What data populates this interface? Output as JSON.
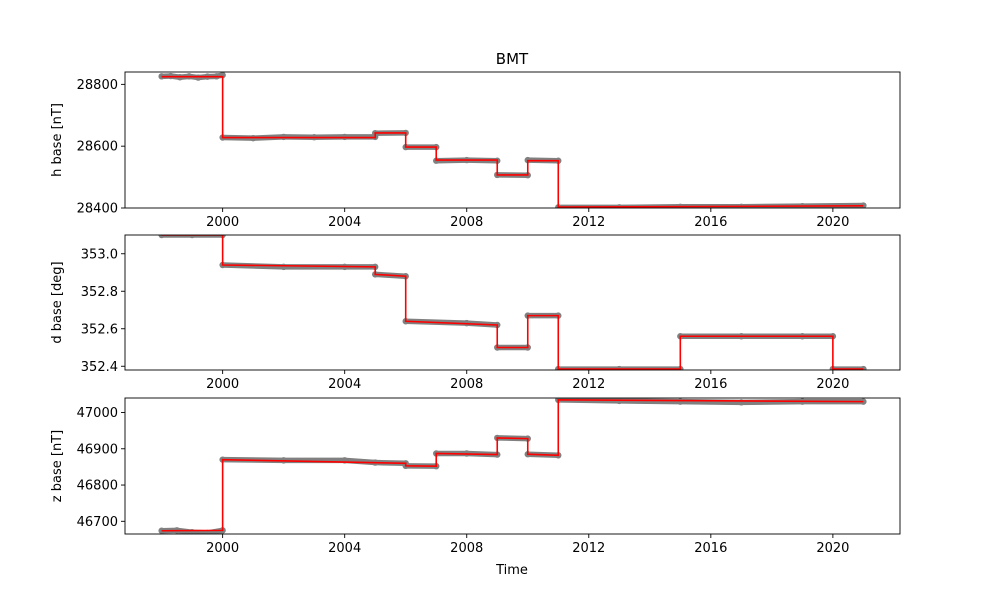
{
  "figure": {
    "title": "BMT",
    "xlabel": "Time",
    "colors": {
      "points": "#808080",
      "line": "#ff0000",
      "axes": "#000000"
    }
  },
  "chart_data": [
    {
      "type": "line",
      "ylabel": "h base [nT]",
      "xlim": [
        1996.8,
        2022.2
      ],
      "ylim": [
        28400,
        28840
      ],
      "xticks": [
        2000,
        2004,
        2008,
        2012,
        2016,
        2020
      ],
      "yticks": [
        28400,
        28600,
        28800
      ],
      "series": [
        {
          "style": "scatter",
          "color": "#808080",
          "points": [
            [
              1998.0,
              28826
            ],
            [
              1998.3,
              28827
            ],
            [
              1998.6,
              28823
            ],
            [
              1998.9,
              28826
            ],
            [
              1999.2,
              28822
            ],
            [
              1999.5,
              28825
            ],
            [
              1999.8,
              28826
            ],
            [
              2000.0,
              28830
            ],
            [
              2000.0,
              28628
            ],
            [
              2001.0,
              28626
            ],
            [
              2002.0,
              28630
            ],
            [
              2003.0,
              28629
            ],
            [
              2004.0,
              28630
            ],
            [
              2005.0,
              28630
            ],
            [
              2005.0,
              28642
            ],
            [
              2006.0,
              28643
            ],
            [
              2006.0,
              28597
            ],
            [
              2007.0,
              28597
            ],
            [
              2007.0,
              28553
            ],
            [
              2008.0,
              28555
            ],
            [
              2009.0,
              28553
            ],
            [
              2009.0,
              28507
            ],
            [
              2010.0,
              28506
            ],
            [
              2010.0,
              28555
            ],
            [
              2011.0,
              28553
            ],
            [
              2011.0,
              28402
            ],
            [
              2013.0,
              28402
            ],
            [
              2015.0,
              28404
            ],
            [
              2017.0,
              28404
            ],
            [
              2019.0,
              28406
            ],
            [
              2021.0,
              28408
            ]
          ]
        },
        {
          "style": "step-line",
          "color": "#ff0000",
          "x": [
            1998.0,
            2000.0,
            2000.0,
            2005.0,
            2005.0,
            2006.0,
            2006.0,
            2007.0,
            2007.0,
            2009.0,
            2009.0,
            2010.0,
            2010.0,
            2011.0,
            2011.0,
            2021.0
          ],
          "y": [
            28825,
            28825,
            28628,
            28628,
            28643,
            28643,
            28597,
            28597,
            28555,
            28555,
            28507,
            28507,
            28553,
            28553,
            28403,
            28407
          ]
        }
      ]
    },
    {
      "type": "line",
      "ylabel": "d base [deg]",
      "xlim": [
        1996.8,
        2022.2
      ],
      "ylim": [
        352.38,
        353.1
      ],
      "xticks": [
        2000,
        2004,
        2008,
        2012,
        2016,
        2020
      ],
      "yticks": [
        352.4,
        352.6,
        352.8,
        353.0
      ],
      "yticklabels": [
        "352.4",
        "352.6",
        "352.8",
        "353.0"
      ],
      "series": [
        {
          "style": "scatter",
          "color": "#808080",
          "points": [
            [
              1998.0,
              353.1
            ],
            [
              1999.0,
              353.1
            ],
            [
              2000.0,
              353.1
            ],
            [
              2000.0,
              352.94
            ],
            [
              2002.0,
              352.93
            ],
            [
              2004.0,
              352.93
            ],
            [
              2005.0,
              352.93
            ],
            [
              2005.0,
              352.89
            ],
            [
              2006.0,
              352.88
            ],
            [
              2006.0,
              352.64
            ],
            [
              2008.0,
              352.63
            ],
            [
              2009.0,
              352.62
            ],
            [
              2009.0,
              352.5
            ],
            [
              2010.0,
              352.5
            ],
            [
              2010.0,
              352.67
            ],
            [
              2011.0,
              352.67
            ],
            [
              2011.0,
              352.385
            ],
            [
              2013.0,
              352.385
            ],
            [
              2015.0,
              352.385
            ],
            [
              2015.0,
              352.56
            ],
            [
              2017.0,
              352.56
            ],
            [
              2019.0,
              352.56
            ],
            [
              2020.0,
              352.56
            ],
            [
              2020.0,
              352.385
            ],
            [
              2021.0,
              352.385
            ]
          ]
        },
        {
          "style": "step-line",
          "color": "#ff0000",
          "x": [
            1998.0,
            2000.0,
            2000.0,
            2005.0,
            2005.0,
            2006.0,
            2006.0,
            2009.0,
            2009.0,
            2010.0,
            2010.0,
            2011.0,
            2011.0,
            2015.0,
            2015.0,
            2020.0,
            2020.0,
            2021.0
          ],
          "y": [
            353.1,
            353.1,
            352.94,
            352.93,
            352.89,
            352.88,
            352.64,
            352.62,
            352.5,
            352.5,
            352.67,
            352.67,
            352.385,
            352.385,
            352.56,
            352.56,
            352.385,
            352.385
          ]
        }
      ]
    },
    {
      "type": "line",
      "ylabel": "z base [nT]",
      "xlim": [
        1996.8,
        2022.2
      ],
      "ylim": [
        46665,
        47040
      ],
      "xticks": [
        2000,
        2004,
        2008,
        2012,
        2016,
        2020
      ],
      "yticks": [
        46700,
        46800,
        46900,
        47000
      ],
      "series": [
        {
          "style": "scatter",
          "color": "#808080",
          "points": [
            [
              1998.0,
              46674
            ],
            [
              1998.5,
              46675
            ],
            [
              1999.0,
              46670
            ],
            [
              1999.5,
              46668
            ],
            [
              2000.0,
              46675
            ],
            [
              2000.0,
              46870
            ],
            [
              2002.0,
              46868
            ],
            [
              2004.0,
              46868
            ],
            [
              2005.0,
              46862
            ],
            [
              2006.0,
              46860
            ],
            [
              2006.0,
              46853
            ],
            [
              2007.0,
              46852
            ],
            [
              2007.0,
              46887
            ],
            [
              2008.0,
              46887
            ],
            [
              2009.0,
              46884
            ],
            [
              2009.0,
              46930
            ],
            [
              2010.0,
              46928
            ],
            [
              2010.0,
              46885
            ],
            [
              2011.0,
              46882
            ],
            [
              2011.0,
              47035
            ],
            [
              2013.0,
              47032
            ],
            [
              2015.0,
              47030
            ],
            [
              2017.0,
              47028
            ],
            [
              2019.0,
              47030
            ],
            [
              2021.0,
              47030
            ]
          ]
        },
        {
          "style": "step-line",
          "color": "#ff0000",
          "x": [
            1998.0,
            2000.0,
            2000.0,
            2006.0,
            2006.0,
            2007.0,
            2007.0,
            2009.0,
            2009.0,
            2010.0,
            2010.0,
            2011.0,
            2011.0,
            2021.0
          ],
          "y": [
            46674,
            46675,
            46870,
            46860,
            46853,
            46852,
            46887,
            46884,
            46930,
            46928,
            46885,
            46882,
            47035,
            47030
          ]
        }
      ]
    }
  ]
}
